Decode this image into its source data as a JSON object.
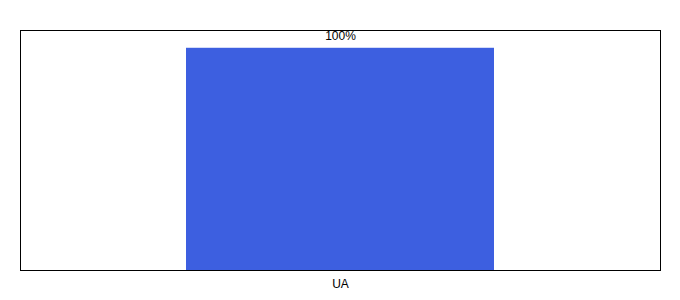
{
  "chart_data": {
    "type": "bar",
    "categories": [
      "UA"
    ],
    "values": [
      100
    ],
    "value_labels": [
      "100%"
    ],
    "data_labels": true,
    "color": "#3d5fe0",
    "ylim": [
      0,
      108
    ],
    "tick_labels": "x"
  }
}
